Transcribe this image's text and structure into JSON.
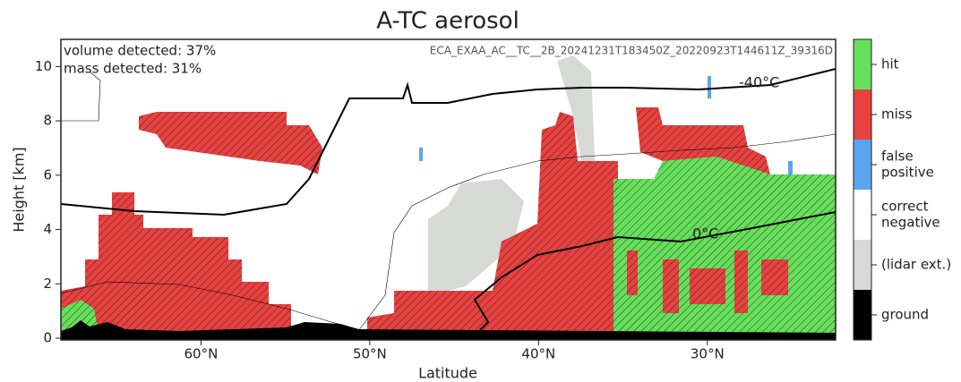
{
  "chart_data": {
    "type": "curtain",
    "title": "A-TC aerosol",
    "xlabel": "Latitude",
    "ylabel": "Height [km]",
    "annotations": [
      "volume detected: 37%",
      "mass detected: 31%",
      "ECA_EXAA_AC__TC__2B_20241231T183450Z_20220923T144611Z_39316D"
    ],
    "isotherms": [
      "-40°C",
      "0°C"
    ],
    "xlim": [
      68.3,
      22.4
    ],
    "xticks": [
      {
        "value": 60,
        "label": "60°N"
      },
      {
        "value": 50,
        "label": "50°N"
      },
      {
        "value": 40,
        "label": "40°N"
      },
      {
        "value": 30,
        "label": "30°N"
      }
    ],
    "ylim": [
      0,
      11
    ],
    "yticks": [
      0,
      2,
      4,
      6,
      8,
      10
    ],
    "classes": [
      {
        "lines": [
          "hit"
        ],
        "color": "#66e05a"
      },
      {
        "lines": [
          "miss"
        ],
        "color": "#e8413f"
      },
      {
        "lines": [
          "false",
          "positive"
        ],
        "color": "#5aa5f0"
      },
      {
        "lines": [
          "correct",
          "negative"
        ],
        "color": "#ffffff"
      },
      {
        "lines": [
          "(lidar ext.)"
        ],
        "color": "#d6d9d6"
      },
      {
        "lines": [
          "ground"
        ],
        "color": "#000000"
      }
    ]
  }
}
